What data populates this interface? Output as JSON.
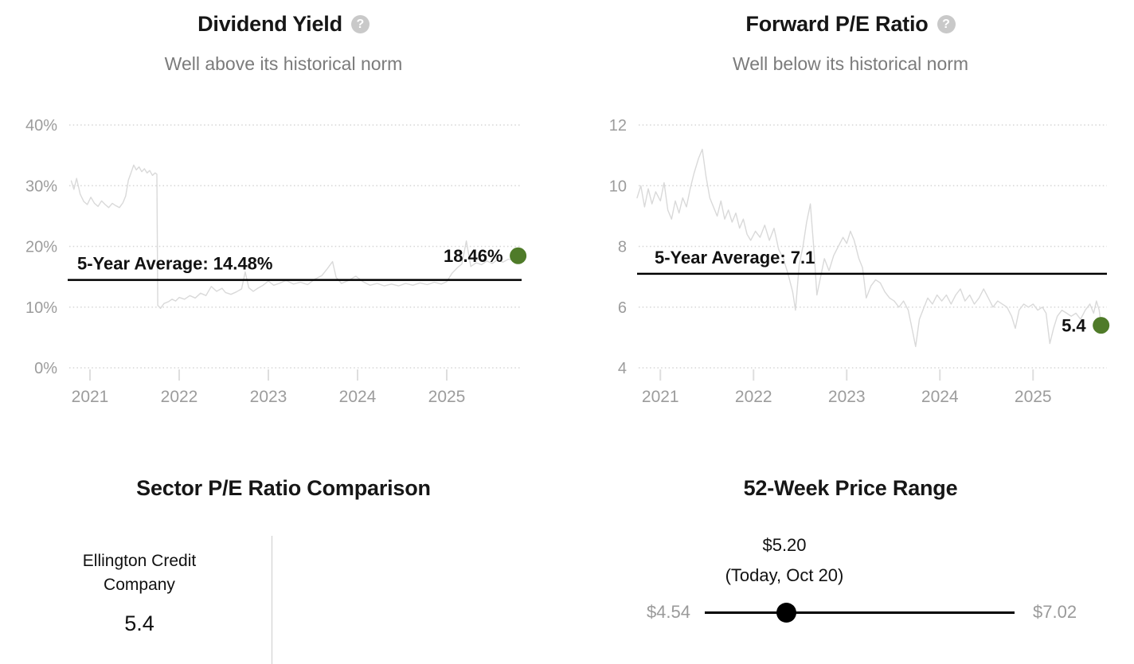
{
  "ui": {
    "help_glyph": "?"
  },
  "style": {
    "series_line_color": "#d9d9d9",
    "grid_color": "#d6d6d6",
    "tick_color": "#dedede",
    "axis_label_color": "#9c9c9c",
    "average_line_color": "#000000",
    "annotation_color": "#111111",
    "current_dot_color": "#4f7b29",
    "slider_color": "#000000",
    "range_label_color": "#9a9a9a"
  },
  "panels": [
    {
      "id": "dividend-yield",
      "title": "Dividend Yield",
      "subtitle": "Well above its historical norm"
    },
    {
      "id": "forward-pe",
      "title": "Forward P/E Ratio",
      "subtitle": "Well below its historical norm"
    },
    {
      "id": "sector-pe",
      "title": "Sector P/E Ratio Comparison",
      "rows": [
        {
          "label": "Ellington Credit\nCompany",
          "value": "5.4"
        }
      ]
    },
    {
      "id": "price-range",
      "title": "52-Week Price Range",
      "current_label": "$5.20",
      "current_note": "(Today, Oct 20)",
      "low_label": "$4.54",
      "high_label": "$7.02"
    }
  ],
  "chart_data": [
    {
      "type": "line",
      "title": "Dividend Yield",
      "subtitle": "Well above its historical norm",
      "unit": "%",
      "ylim": [
        0,
        40
      ],
      "xlim": [
        2020.75,
        2025.84
      ],
      "yticks": [
        0,
        10,
        20,
        30,
        40
      ],
      "ytick_suffix": "%",
      "xticks": [
        2021,
        2022,
        2023,
        2024,
        2025
      ],
      "grid": "dotted-horizontal",
      "legend": "none",
      "five_year_average": 14.48,
      "average_label": "5-Year Average: 14.48%",
      "current_value": 18.46,
      "current_label": "18.46%",
      "series": [
        [
          2020.79,
          30.8
        ],
        [
          2020.82,
          29.4
        ],
        [
          2020.85,
          31.2
        ],
        [
          2020.89,
          28.6
        ],
        [
          2020.93,
          27.4
        ],
        [
          2020.97,
          26.9
        ],
        [
          2021.01,
          28.1
        ],
        [
          2021.05,
          27.1
        ],
        [
          2021.09,
          26.6
        ],
        [
          2021.13,
          27.5
        ],
        [
          2021.17,
          26.9
        ],
        [
          2021.21,
          26.4
        ],
        [
          2021.25,
          27.1
        ],
        [
          2021.29,
          26.7
        ],
        [
          2021.33,
          26.4
        ],
        [
          2021.37,
          27.2
        ],
        [
          2021.4,
          28.3
        ],
        [
          2021.43,
          30.9
        ],
        [
          2021.46,
          32.1
        ],
        [
          2021.49,
          33.4
        ],
        [
          2021.52,
          32.6
        ],
        [
          2021.55,
          33.1
        ],
        [
          2021.58,
          32.3
        ],
        [
          2021.61,
          32.8
        ],
        [
          2021.64,
          32.1
        ],
        [
          2021.67,
          32.5
        ],
        [
          2021.7,
          31.7
        ],
        [
          2021.73,
          32.1
        ],
        [
          2021.75,
          31.9
        ],
        [
          2021.76,
          10.3
        ],
        [
          2021.79,
          9.8
        ],
        [
          2021.83,
          10.6
        ],
        [
          2021.88,
          10.9
        ],
        [
          2021.92,
          11.3
        ],
        [
          2021.96,
          11.0
        ],
        [
          2022.0,
          11.6
        ],
        [
          2022.06,
          11.3
        ],
        [
          2022.12,
          11.9
        ],
        [
          2022.18,
          11.5
        ],
        [
          2022.24,
          12.3
        ],
        [
          2022.3,
          11.9
        ],
        [
          2022.36,
          13.4
        ],
        [
          2022.42,
          12.6
        ],
        [
          2022.48,
          13.1
        ],
        [
          2022.52,
          12.4
        ],
        [
          2022.58,
          12.1
        ],
        [
          2022.64,
          12.5
        ],
        [
          2022.7,
          13.0
        ],
        [
          2022.74,
          15.8
        ],
        [
          2022.78,
          13.2
        ],
        [
          2022.83,
          12.6
        ],
        [
          2022.88,
          13.1
        ],
        [
          2022.94,
          13.6
        ],
        [
          2023.0,
          14.3
        ],
        [
          2023.06,
          13.6
        ],
        [
          2023.12,
          13.9
        ],
        [
          2023.2,
          14.4
        ],
        [
          2023.28,
          13.8
        ],
        [
          2023.36,
          14.1
        ],
        [
          2023.44,
          13.7
        ],
        [
          2023.52,
          14.6
        ],
        [
          2023.6,
          15.2
        ],
        [
          2023.66,
          16.3
        ],
        [
          2023.72,
          17.5
        ],
        [
          2023.76,
          14.9
        ],
        [
          2023.82,
          13.9
        ],
        [
          2023.9,
          14.4
        ],
        [
          2023.98,
          15.1
        ],
        [
          2024.06,
          14.2
        ],
        [
          2024.14,
          13.6
        ],
        [
          2024.22,
          13.9
        ],
        [
          2024.3,
          13.5
        ],
        [
          2024.38,
          13.8
        ],
        [
          2024.46,
          13.5
        ],
        [
          2024.54,
          13.9
        ],
        [
          2024.62,
          13.6
        ],
        [
          2024.7,
          14.0
        ],
        [
          2024.78,
          13.7
        ],
        [
          2024.86,
          14.1
        ],
        [
          2024.94,
          13.8
        ],
        [
          2025.0,
          14.2
        ],
        [
          2025.06,
          15.6
        ],
        [
          2025.12,
          16.5
        ],
        [
          2025.17,
          17.1
        ],
        [
          2025.22,
          20.9
        ],
        [
          2025.27,
          16.7
        ],
        [
          2025.33,
          17.3
        ],
        [
          2025.39,
          17.0
        ],
        [
          2025.45,
          17.6
        ],
        [
          2025.51,
          17.2
        ],
        [
          2025.57,
          17.8
        ],
        [
          2025.63,
          17.4
        ],
        [
          2025.69,
          17.9
        ],
        [
          2025.75,
          17.7
        ],
        [
          2025.8,
          18.46
        ]
      ]
    },
    {
      "type": "line",
      "title": "Forward P/E Ratio",
      "subtitle": "Well below its historical norm",
      "unit": "",
      "ylim": [
        4,
        12
      ],
      "xlim": [
        2020.75,
        2025.8
      ],
      "yticks": [
        4,
        6,
        8,
        10,
        12
      ],
      "ytick_suffix": "",
      "xticks": [
        2021,
        2022,
        2023,
        2024,
        2025
      ],
      "grid": "dotted-horizontal",
      "legend": "none",
      "five_year_average": 7.1,
      "average_label": "5-Year Average: 7.1",
      "current_value": 5.4,
      "current_label": "5.4",
      "series": [
        [
          2020.75,
          9.6
        ],
        [
          2020.79,
          10.0
        ],
        [
          2020.83,
          9.3
        ],
        [
          2020.87,
          9.9
        ],
        [
          2020.91,
          9.4
        ],
        [
          2020.95,
          9.8
        ],
        [
          2021.0,
          9.5
        ],
        [
          2021.04,
          10.1
        ],
        [
          2021.08,
          9.2
        ],
        [
          2021.12,
          8.9
        ],
        [
          2021.16,
          9.5
        ],
        [
          2021.2,
          9.1
        ],
        [
          2021.24,
          9.6
        ],
        [
          2021.28,
          9.3
        ],
        [
          2021.32,
          9.9
        ],
        [
          2021.36,
          10.4
        ],
        [
          2021.41,
          10.9
        ],
        [
          2021.45,
          11.2
        ],
        [
          2021.49,
          10.3
        ],
        [
          2021.53,
          9.6
        ],
        [
          2021.57,
          9.3
        ],
        [
          2021.61,
          9.0
        ],
        [
          2021.65,
          9.5
        ],
        [
          2021.69,
          8.9
        ],
        [
          2021.73,
          9.2
        ],
        [
          2021.77,
          8.8
        ],
        [
          2021.81,
          9.1
        ],
        [
          2021.85,
          8.6
        ],
        [
          2021.89,
          8.9
        ],
        [
          2021.93,
          8.4
        ],
        [
          2021.97,
          8.2
        ],
        [
          2022.02,
          8.5
        ],
        [
          2022.07,
          8.3
        ],
        [
          2022.12,
          8.7
        ],
        [
          2022.17,
          8.2
        ],
        [
          2022.22,
          8.6
        ],
        [
          2022.27,
          7.9
        ],
        [
          2022.32,
          7.6
        ],
        [
          2022.37,
          7.1
        ],
        [
          2022.42,
          6.5
        ],
        [
          2022.45,
          5.9
        ],
        [
          2022.49,
          7.4
        ],
        [
          2022.53,
          8.0
        ],
        [
          2022.57,
          8.8
        ],
        [
          2022.61,
          9.4
        ],
        [
          2022.65,
          7.8
        ],
        [
          2022.68,
          6.4
        ],
        [
          2022.72,
          7.0
        ],
        [
          2022.76,
          7.6
        ],
        [
          2022.81,
          7.2
        ],
        [
          2022.86,
          7.7
        ],
        [
          2022.91,
          8.0
        ],
        [
          2022.96,
          8.3
        ],
        [
          2023.0,
          8.1
        ],
        [
          2023.04,
          8.5
        ],
        [
          2023.08,
          8.2
        ],
        [
          2023.13,
          7.6
        ],
        [
          2023.17,
          7.3
        ],
        [
          2023.21,
          6.3
        ],
        [
          2023.26,
          6.7
        ],
        [
          2023.31,
          6.9
        ],
        [
          2023.36,
          6.8
        ],
        [
          2023.41,
          6.5
        ],
        [
          2023.46,
          6.3
        ],
        [
          2023.51,
          6.2
        ],
        [
          2023.56,
          6.0
        ],
        [
          2023.61,
          6.2
        ],
        [
          2023.66,
          5.9
        ],
        [
          2023.7,
          5.3
        ],
        [
          2023.74,
          4.7
        ],
        [
          2023.78,
          5.6
        ],
        [
          2023.83,
          6.0
        ],
        [
          2023.87,
          6.3
        ],
        [
          2023.92,
          6.1
        ],
        [
          2023.97,
          6.4
        ],
        [
          2024.02,
          6.2
        ],
        [
          2024.07,
          6.4
        ],
        [
          2024.12,
          6.1
        ],
        [
          2024.17,
          6.4
        ],
        [
          2024.22,
          6.6
        ],
        [
          2024.27,
          6.2
        ],
        [
          2024.32,
          6.4
        ],
        [
          2024.37,
          6.1
        ],
        [
          2024.42,
          6.3
        ],
        [
          2024.47,
          6.6
        ],
        [
          2024.52,
          6.3
        ],
        [
          2024.57,
          6.0
        ],
        [
          2024.62,
          6.2
        ],
        [
          2024.67,
          6.1
        ],
        [
          2024.72,
          6.0
        ],
        [
          2024.77,
          5.7
        ],
        [
          2024.81,
          5.3
        ],
        [
          2024.85,
          5.9
        ],
        [
          2024.9,
          6.1
        ],
        [
          2024.95,
          6.0
        ],
        [
          2025.0,
          6.1
        ],
        [
          2025.05,
          5.9
        ],
        [
          2025.1,
          6.0
        ],
        [
          2025.14,
          5.8
        ],
        [
          2025.18,
          4.8
        ],
        [
          2025.22,
          5.3
        ],
        [
          2025.26,
          5.7
        ],
        [
          2025.31,
          5.9
        ],
        [
          2025.36,
          5.8
        ],
        [
          2025.41,
          5.7
        ],
        [
          2025.46,
          5.8
        ],
        [
          2025.51,
          5.6
        ],
        [
          2025.56,
          5.9
        ],
        [
          2025.61,
          6.1
        ],
        [
          2025.65,
          5.8
        ],
        [
          2025.68,
          6.2
        ],
        [
          2025.71,
          5.9
        ],
        [
          2025.73,
          5.4
        ]
      ]
    },
    {
      "type": "bar",
      "title": "Sector P/E Ratio Comparison",
      "categories": [
        "Ellington Credit Company"
      ],
      "values": [
        5.4
      ]
    },
    {
      "type": "range",
      "title": "52-Week Price Range",
      "low": 4.54,
      "high": 7.02,
      "current": 5.2,
      "current_date": "Today, Oct 20"
    }
  ]
}
